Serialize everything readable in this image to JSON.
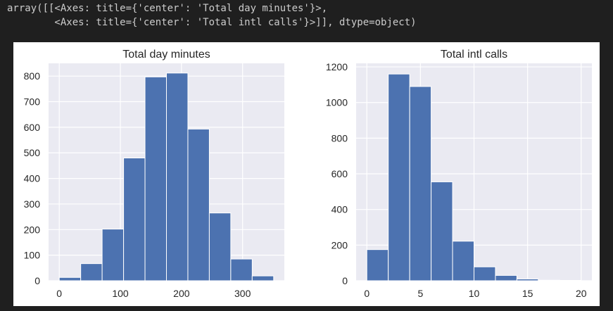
{
  "output": {
    "line1": "array([[<Axes: title={'center': 'Total day minutes'}>,",
    "line2": "        <Axes: title={'center': 'Total intl calls'}>]], dtype=object)"
  },
  "colors": {
    "bar": "#4c72b0",
    "plot_bg": "#eaeaf2",
    "grid": "#ffffff",
    "page_bg": "#1f1f1f"
  },
  "chart_data": [
    {
      "type": "bar",
      "title": "Total day minutes",
      "bin_edges": [
        0,
        35.08,
        70.16,
        105.24,
        140.32,
        175.4,
        210.48,
        245.56,
        280.64,
        315.72,
        350.8
      ],
      "values": [
        13,
        67,
        202,
        480,
        797,
        812,
        593,
        265,
        85,
        19
      ],
      "xlim": [
        -17.5,
        368.3
      ],
      "ylim": [
        0,
        850
      ],
      "xticks": [
        0,
        100,
        200,
        300
      ],
      "yticks": [
        0,
        100,
        200,
        300,
        400,
        500,
        600,
        700,
        800
      ],
      "grid": true
    },
    {
      "type": "bar",
      "title": "Total intl calls",
      "bin_edges": [
        0,
        2,
        4,
        6,
        8,
        10,
        12,
        14,
        16,
        18,
        20
      ],
      "values": [
        175,
        1160,
        1090,
        555,
        222,
        78,
        30,
        10,
        3,
        2
      ],
      "xlim": [
        -1,
        21
      ],
      "ylim": [
        0,
        1220
      ],
      "xticks": [
        0,
        5,
        10,
        15,
        20
      ],
      "yticks": [
        0,
        200,
        400,
        600,
        800,
        1000,
        1200
      ],
      "grid": true
    }
  ]
}
